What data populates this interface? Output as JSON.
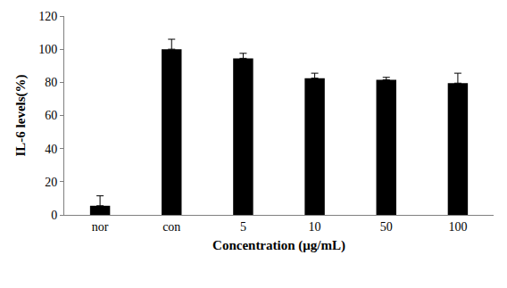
{
  "chart_data": {
    "type": "bar",
    "x_label": "Concentration (μg/mL)",
    "y_label": "IL-6 levels(%)",
    "categories": [
      "nor",
      "con",
      "5",
      "10",
      "50",
      "100"
    ],
    "values": [
      5.5,
      100,
      94.5,
      82.5,
      81.5,
      79.5
    ],
    "errors": [
      6,
      6,
      3,
      3,
      1.5,
      6
    ],
    "color": "#000000",
    "ylim": [
      0,
      120
    ],
    "yticks": [
      0,
      20,
      40,
      60,
      80,
      100,
      120
    ],
    "grid": false
  }
}
